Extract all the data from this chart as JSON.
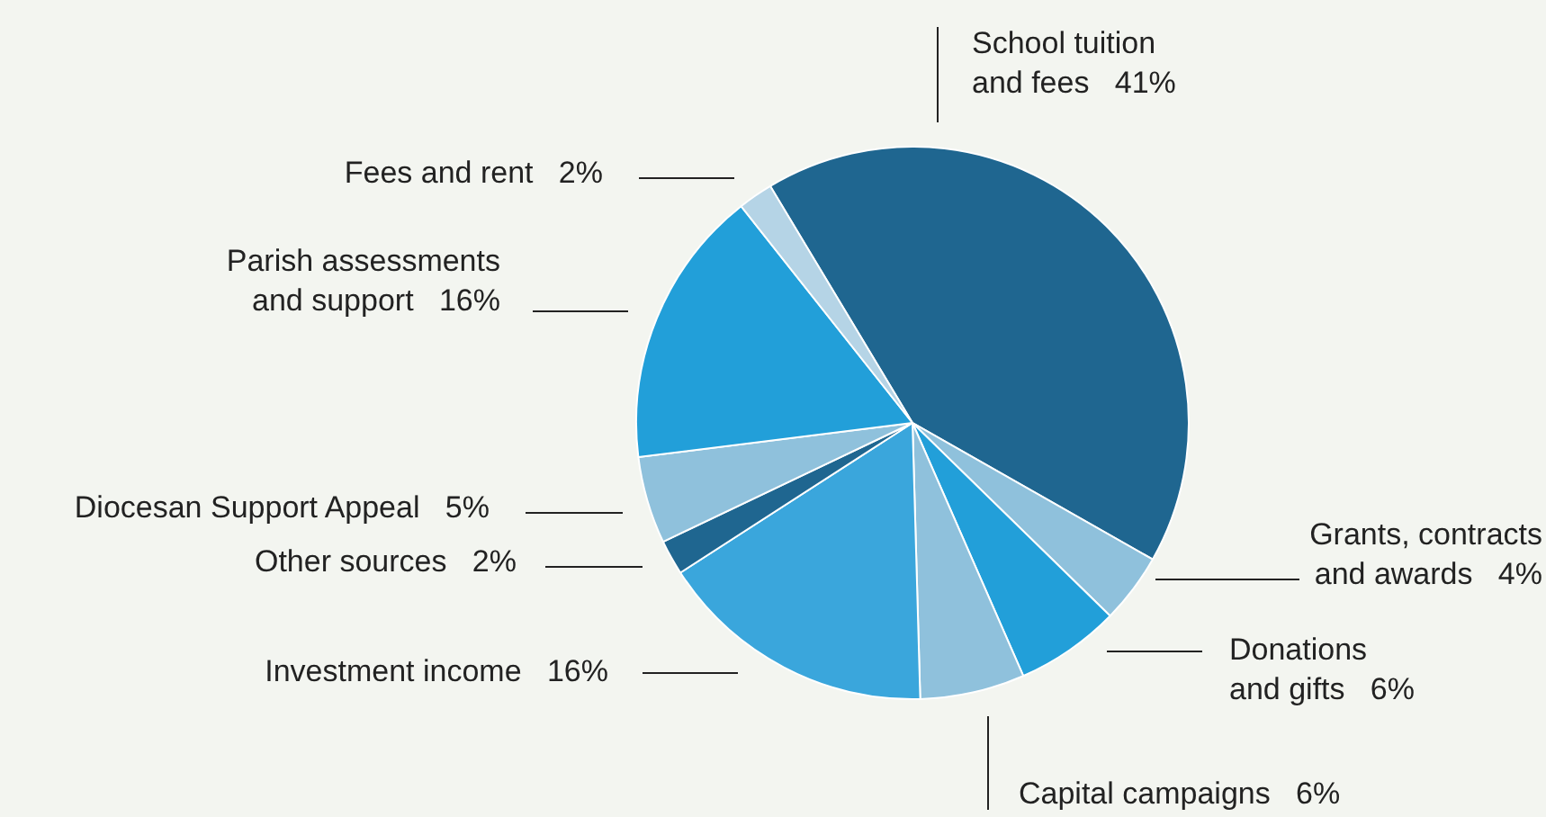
{
  "chart_data": {
    "type": "pie",
    "categories": [
      "School tuition and fees",
      "Grants, contracts and awards",
      "Donations and gifts",
      "Capital campaigns",
      "Investment income",
      "Other sources",
      "Diocesan Support Appeal",
      "Parish assessments and support",
      "Fees and rent"
    ],
    "values": [
      41,
      4,
      6,
      6,
      16,
      2,
      5,
      16,
      2
    ],
    "value_labels": [
      "41%",
      "4%",
      "6%",
      "6%",
      "16%",
      "2%",
      "5%",
      "16%",
      "2%"
    ],
    "colors": [
      "#1f6690",
      "#8fc1dc",
      "#229fd9",
      "#8fc1dc",
      "#3aa6dc",
      "#1f6690",
      "#8fc1dc",
      "#229fd9",
      "#b5d4e6"
    ],
    "legend": false
  }
}
